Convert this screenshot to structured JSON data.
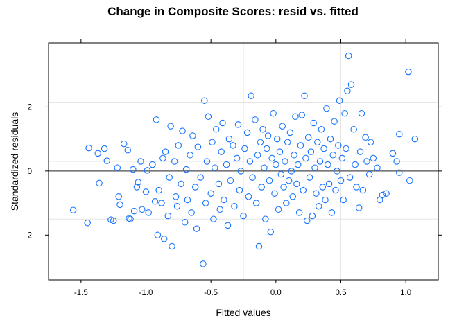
{
  "chart_data": {
    "type": "scatter",
    "title": "Change in Composite Scores: resid vs. fitted",
    "xlabel": "Fitted values",
    "ylabel": "Standardized residuals",
    "xlim": [
      -1.75,
      1.25
    ],
    "ylim": [
      -3.4,
      4.0
    ],
    "x_ticks": [
      -1.5,
      -1.0,
      -0.5,
      0.0,
      0.5,
      1.0
    ],
    "x_tick_labels": [
      "-1.5",
      "-1.0",
      "-0.5",
      "0.0",
      "0.5",
      "1.0"
    ],
    "y_ticks": [
      -2,
      0,
      2
    ],
    "y_tick_labels": [
      "-2",
      "0",
      "2"
    ],
    "x_gridlines": [
      -1.0,
      -0.25,
      0.5
    ],
    "y_gridlines": [
      -1.5,
      0.3,
      2.15
    ],
    "reference_line_y": 0,
    "grid": true,
    "colors": {
      "point": "#1874ff",
      "gridline": "#e6e6e6",
      "reference_line": "#4d4d4d",
      "frame": "#000000"
    },
    "series": [
      {
        "name": "observations",
        "points": [
          [
            -1.56,
            -1.22
          ],
          [
            -1.45,
            -1.62
          ],
          [
            -1.44,
            0.72
          ],
          [
            -1.37,
            0.55
          ],
          [
            -1.36,
            -0.38
          ],
          [
            -1.32,
            0.7
          ],
          [
            -1.3,
            0.32
          ],
          [
            -1.27,
            -1.52
          ],
          [
            -1.25,
            -1.55
          ],
          [
            -1.22,
            0.1
          ],
          [
            -1.21,
            -0.8
          ],
          [
            -1.2,
            -1.05
          ],
          [
            -1.17,
            0.85
          ],
          [
            -1.14,
            0.65
          ],
          [
            -1.13,
            -1.48
          ],
          [
            -1.12,
            -1.5
          ],
          [
            -1.1,
            0.05
          ],
          [
            -1.09,
            -1.25
          ],
          [
            -1.07,
            -0.5
          ],
          [
            -1.06,
            -0.35
          ],
          [
            -1.04,
            0.3
          ],
          [
            -1.03,
            -1.2
          ],
          [
            -1.0,
            -0.65
          ],
          [
            -0.99,
            0.02
          ],
          [
            -0.98,
            -1.3
          ],
          [
            -0.95,
            0.2
          ],
          [
            -0.93,
            -0.95
          ],
          [
            -0.92,
            1.6
          ],
          [
            -0.91,
            -2.0
          ],
          [
            -0.9,
            -0.6
          ],
          [
            -0.88,
            -1.0
          ],
          [
            -0.87,
            0.4
          ],
          [
            -0.86,
            -2.12
          ],
          [
            -0.85,
            0.6
          ],
          [
            -0.83,
            -1.4
          ],
          [
            -0.82,
            -0.2
          ],
          [
            -0.81,
            1.4
          ],
          [
            -0.8,
            -2.35
          ],
          [
            -0.78,
            0.3
          ],
          [
            -0.77,
            -0.8
          ],
          [
            -0.76,
            -1.1
          ],
          [
            -0.75,
            0.8
          ],
          [
            -0.73,
            -0.4
          ],
          [
            -0.72,
            1.25
          ],
          [
            -0.7,
            -1.6
          ],
          [
            -0.69,
            0.05
          ],
          [
            -0.68,
            -0.9
          ],
          [
            -0.66,
            0.5
          ],
          [
            -0.65,
            -1.3
          ],
          [
            -0.64,
            1.1
          ],
          [
            -0.62,
            -0.5
          ],
          [
            -0.61,
            -1.8
          ],
          [
            -0.6,
            0.75
          ],
          [
            -0.58,
            -0.2
          ],
          [
            -0.56,
            -2.9
          ],
          [
            -0.55,
            2.2
          ],
          [
            -0.54,
            -1.0
          ],
          [
            -0.53,
            0.3
          ],
          [
            -0.52,
            1.7
          ],
          [
            -0.5,
            -0.7
          ],
          [
            -0.49,
            0.9
          ],
          [
            -0.48,
            -1.5
          ],
          [
            -0.47,
            0.1
          ],
          [
            -0.46,
            1.3
          ],
          [
            -0.44,
            -0.4
          ],
          [
            -0.43,
            -1.2
          ],
          [
            -0.42,
            0.6
          ],
          [
            -0.41,
            1.5
          ],
          [
            -0.4,
            -0.9
          ],
          [
            -0.38,
            0.2
          ],
          [
            -0.37,
            -1.7
          ],
          [
            -0.36,
            1.0
          ],
          [
            -0.35,
            -0.3
          ],
          [
            -0.33,
            0.8
          ],
          [
            -0.32,
            -1.1
          ],
          [
            -0.3,
            0.4
          ],
          [
            -0.29,
            1.45
          ],
          [
            -0.28,
            -0.6
          ],
          [
            -0.27,
            0.0
          ],
          [
            -0.25,
            -1.4
          ],
          [
            -0.24,
            0.7
          ],
          [
            -0.22,
            1.2
          ],
          [
            -0.21,
            -0.8
          ],
          [
            -0.2,
            0.3
          ],
          [
            -0.19,
            2.35
          ],
          [
            -0.18,
            -0.2
          ],
          [
            -0.16,
            1.6
          ],
          [
            -0.15,
            -1.0
          ],
          [
            -0.14,
            0.5
          ],
          [
            -0.13,
            -2.35
          ],
          [
            -0.12,
            0.9
          ],
          [
            -0.11,
            -0.5
          ],
          [
            -0.1,
            1.3
          ],
          [
            -0.09,
            0.1
          ],
          [
            -0.08,
            -1.5
          ],
          [
            -0.07,
            0.7
          ],
          [
            -0.06,
            1.1
          ],
          [
            -0.05,
            -0.3
          ],
          [
            -0.04,
            -1.9
          ],
          [
            -0.03,
            0.4
          ],
          [
            -0.02,
            1.8
          ],
          [
            -0.01,
            -0.7
          ],
          [
            0.0,
            0.2
          ],
          [
            0.01,
            1.0
          ],
          [
            0.02,
            -1.2
          ],
          [
            0.03,
            0.6
          ],
          [
            0.04,
            -0.1
          ],
          [
            0.05,
            1.4
          ],
          [
            0.06,
            -0.5
          ],
          [
            0.07,
            0.3
          ],
          [
            0.08,
            -1.0
          ],
          [
            0.09,
            0.9
          ],
          [
            0.1,
            -0.3
          ],
          [
            0.11,
            1.2
          ],
          [
            0.12,
            0.0
          ],
          [
            0.13,
            -0.8
          ],
          [
            0.14,
            0.5
          ],
          [
            0.15,
            1.7
          ],
          [
            0.16,
            -0.4
          ],
          [
            0.17,
            0.2
          ],
          [
            0.18,
            -1.3
          ],
          [
            0.19,
            0.8
          ],
          [
            0.2,
            1.75
          ],
          [
            0.21,
            -0.6
          ],
          [
            0.22,
            2.35
          ],
          [
            0.23,
            0.4
          ],
          [
            0.24,
            -1.55
          ],
          [
            0.25,
            1.05
          ],
          [
            0.26,
            -0.2
          ],
          [
            0.27,
            0.6
          ],
          [
            0.28,
            -1.4
          ],
          [
            0.29,
            1.5
          ],
          [
            0.3,
            0.1
          ],
          [
            0.31,
            -0.7
          ],
          [
            0.32,
            0.9
          ],
          [
            0.33,
            -1.1
          ],
          [
            0.34,
            0.3
          ],
          [
            0.35,
            1.3
          ],
          [
            0.36,
            -0.5
          ],
          [
            0.37,
            0.7
          ],
          [
            0.38,
            -0.9
          ],
          [
            0.39,
            1.95
          ],
          [
            0.4,
            0.2
          ],
          [
            0.41,
            -0.4
          ],
          [
            0.42,
            1.0
          ],
          [
            0.43,
            -1.3
          ],
          [
            0.44,
            0.5
          ],
          [
            0.45,
            1.55
          ],
          [
            0.46,
            -0.6
          ],
          [
            0.47,
            0.0
          ],
          [
            0.48,
            0.8
          ],
          [
            0.49,
            2.2
          ],
          [
            0.5,
            -0.3
          ],
          [
            0.51,
            0.4
          ],
          [
            0.52,
            -0.9
          ],
          [
            0.53,
            1.8
          ],
          [
            0.54,
            0.7
          ],
          [
            0.55,
            2.5
          ],
          [
            0.56,
            3.6
          ],
          [
            0.57,
            -0.2
          ],
          [
            0.58,
            2.7
          ],
          [
            0.6,
            1.3
          ],
          [
            0.61,
            0.2
          ],
          [
            0.62,
            -0.5
          ],
          [
            0.64,
            -1.15
          ],
          [
            0.65,
            0.6
          ],
          [
            0.66,
            1.8
          ],
          [
            0.67,
            -0.6
          ],
          [
            0.69,
            1.05
          ],
          [
            0.7,
            0.3
          ],
          [
            0.72,
            -0.1
          ],
          [
            0.73,
            0.9
          ],
          [
            0.75,
            0.4
          ],
          [
            0.78,
            0.1
          ],
          [
            0.8,
            -0.9
          ],
          [
            0.82,
            -0.75
          ],
          [
            0.85,
            -0.7
          ],
          [
            0.9,
            0.55
          ],
          [
            0.93,
            0.3
          ],
          [
            0.95,
            -0.05
          ],
          [
            0.95,
            1.15
          ],
          [
            1.02,
            3.1
          ],
          [
            1.03,
            -0.3
          ],
          [
            1.07,
            1.0
          ]
        ]
      }
    ]
  }
}
